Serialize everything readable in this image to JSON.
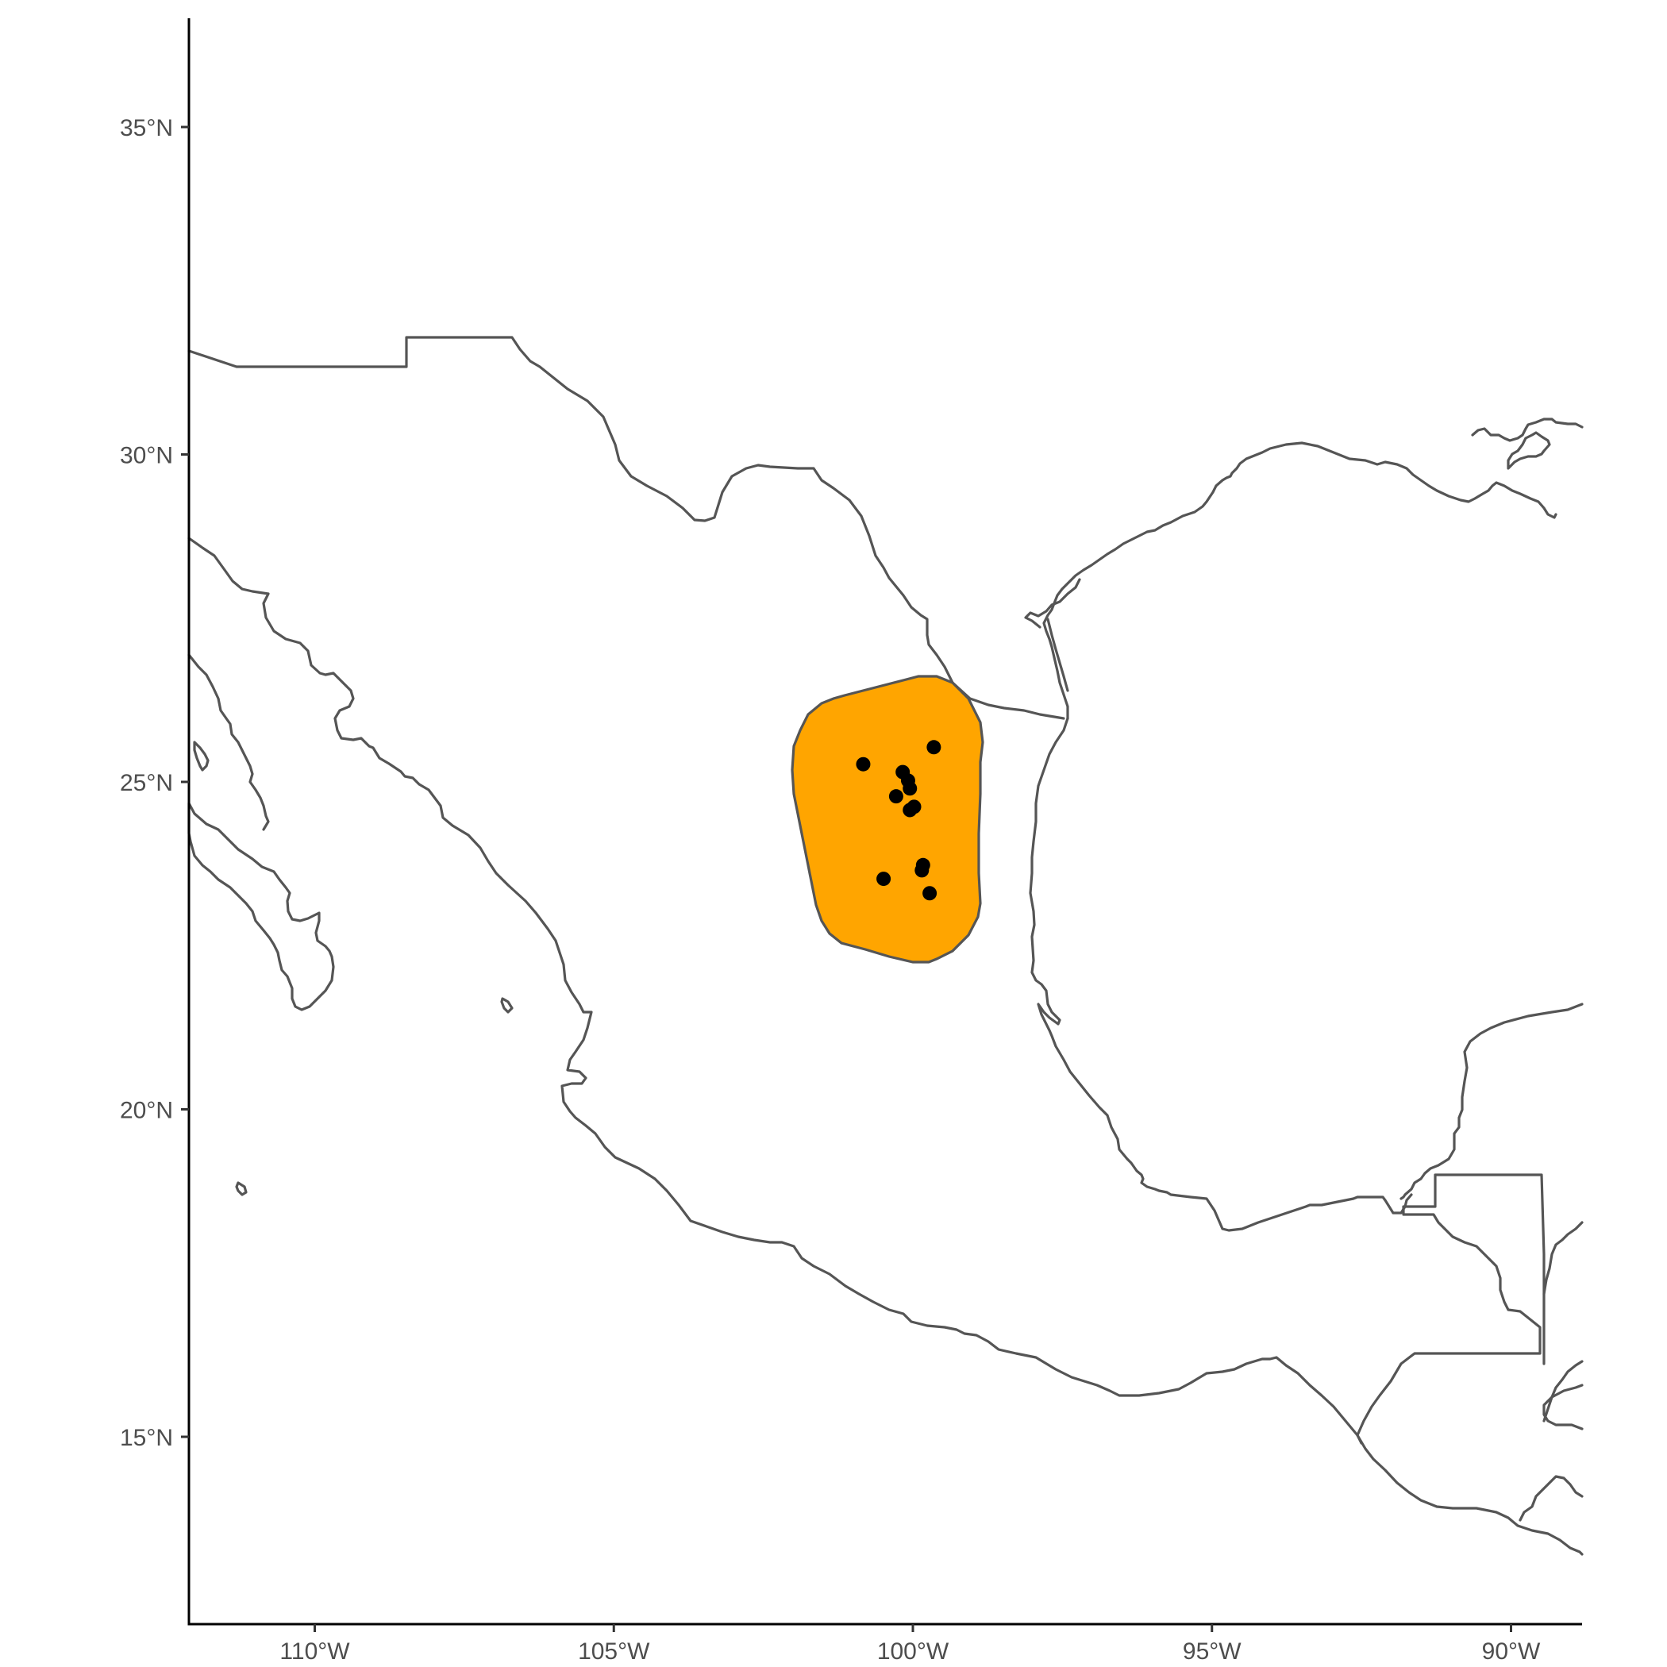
{
  "map": {
    "colors": {
      "range_fill": "#ffa500",
      "range_stroke": "#555555",
      "border": "#555555",
      "points": "#000000",
      "background": "#ffffff"
    },
    "lat_ticks": [
      {
        "value": 35,
        "label": "35°N"
      },
      {
        "value": 30,
        "label": "30°N"
      },
      {
        "value": 25,
        "label": "25°N"
      },
      {
        "value": 20,
        "label": "20°N"
      },
      {
        "value": 15,
        "label": "15°N"
      }
    ],
    "lon_ticks": [
      {
        "value": -110,
        "label": "110°W"
      },
      {
        "value": -105,
        "label": "105°W"
      },
      {
        "value": -100,
        "label": "100°W"
      },
      {
        "value": -95,
        "label": "95°W"
      },
      {
        "value": -90,
        "label": "90°W"
      }
    ],
    "occurrences": [
      {
        "lon": -99.65,
        "lat": 25.53
      },
      {
        "lon": -100.83,
        "lat": 25.27
      },
      {
        "lon": -100.17,
        "lat": 25.15
      },
      {
        "lon": -100.08,
        "lat": 25.02
      },
      {
        "lon": -100.05,
        "lat": 24.9
      },
      {
        "lon": -100.28,
        "lat": 24.78
      },
      {
        "lon": -99.98,
        "lat": 24.62
      },
      {
        "lon": -100.05,
        "lat": 24.57
      },
      {
        "lon": -99.83,
        "lat": 23.73
      },
      {
        "lon": -99.85,
        "lat": 23.65
      },
      {
        "lon": -100.49,
        "lat": 23.52
      },
      {
        "lon": -99.72,
        "lat": 23.3
      }
    ]
  }
}
